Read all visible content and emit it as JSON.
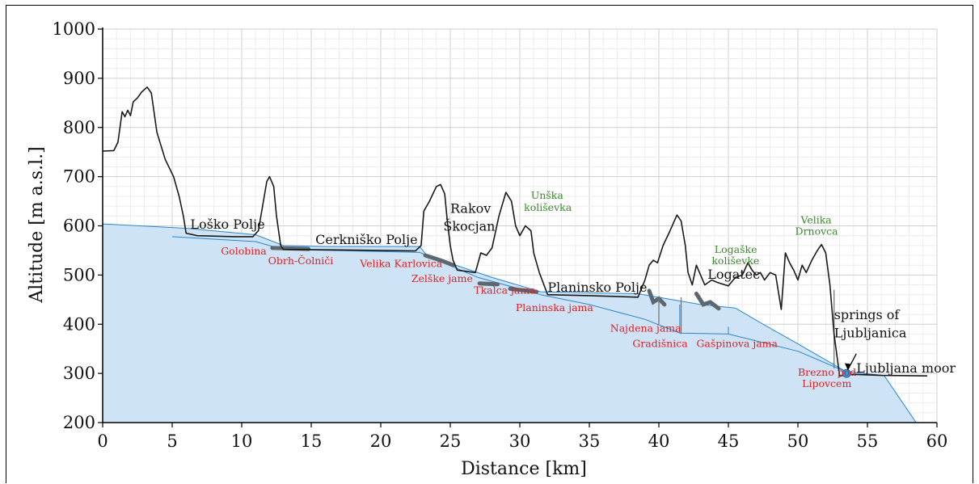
{
  "chart_data": {
    "type": "area",
    "xlabel": "Distance [km]",
    "ylabel": "Altitude [m a.s.l.]",
    "xlim": [
      0,
      60
    ],
    "ylim": [
      200,
      1000
    ],
    "x_ticks": [
      0,
      5,
      10,
      15,
      20,
      25,
      30,
      35,
      40,
      45,
      50,
      55,
      60
    ],
    "y_ticks": [
      200,
      300,
      400,
      500,
      600,
      700,
      800,
      900,
      1000
    ],
    "grid": true,
    "colors": {
      "surface": "#1a1a1a",
      "aquifer_fill": "#cfe3f6",
      "aquifer_line": "#2b86cf",
      "cave_label": "#e02020",
      "doline_label": "#3a8a2a",
      "place_label": "#111111",
      "spring_marker": "#2f9be0"
    },
    "series": [
      {
        "role": "surface",
        "points": [
          [
            0,
            752
          ],
          [
            0.8,
            753
          ],
          [
            1.1,
            770
          ],
          [
            1.4,
            832
          ],
          [
            1.6,
            822
          ],
          [
            1.8,
            835
          ],
          [
            2.0,
            824
          ],
          [
            2.2,
            852
          ],
          [
            2.5,
            860
          ],
          [
            2.8,
            872
          ],
          [
            3.2,
            882
          ],
          [
            3.5,
            870
          ],
          [
            3.9,
            790
          ],
          [
            4.5,
            735
          ],
          [
            5.1,
            700
          ],
          [
            5.5,
            660
          ],
          [
            5.8,
            620
          ],
          [
            6.0,
            585
          ],
          [
            6.8,
            580
          ],
          [
            9.5,
            578
          ],
          [
            10.8,
            578
          ],
          [
            11.2,
            590
          ],
          [
            11.5,
            640
          ],
          [
            11.8,
            690
          ],
          [
            12.0,
            700
          ],
          [
            12.3,
            680
          ],
          [
            12.5,
            620
          ],
          [
            12.8,
            560
          ],
          [
            13.0,
            552
          ],
          [
            17,
            551
          ],
          [
            22.5,
            549
          ],
          [
            22.9,
            560
          ],
          [
            23.1,
            630
          ],
          [
            23.5,
            650
          ],
          [
            24.0,
            680
          ],
          [
            24.3,
            684
          ],
          [
            24.6,
            665
          ],
          [
            24.8,
            605
          ],
          [
            25.0,
            560
          ],
          [
            25.2,
            530
          ],
          [
            25.5,
            510
          ],
          [
            26.8,
            505
          ],
          [
            27.2,
            545
          ],
          [
            27.6,
            540
          ],
          [
            28.0,
            555
          ],
          [
            28.5,
            620
          ],
          [
            29.0,
            668
          ],
          [
            29.4,
            650
          ],
          [
            29.7,
            600
          ],
          [
            30.0,
            580
          ],
          [
            30.4,
            600
          ],
          [
            30.8,
            590
          ],
          [
            31.0,
            545
          ],
          [
            31.4,
            505
          ],
          [
            32.0,
            460
          ],
          [
            35,
            458
          ],
          [
            38.5,
            455
          ],
          [
            39.0,
            490
          ],
          [
            39.3,
            520
          ],
          [
            39.6,
            530
          ],
          [
            39.9,
            525
          ],
          [
            40.3,
            560
          ],
          [
            40.8,
            590
          ],
          [
            41.3,
            622
          ],
          [
            41.6,
            610
          ],
          [
            41.9,
            560
          ],
          [
            42.1,
            505
          ],
          [
            42.4,
            480
          ],
          [
            42.7,
            520
          ],
          [
            43.0,
            500
          ],
          [
            43.3,
            480
          ],
          [
            43.8,
            490
          ],
          [
            44.2,
            485
          ],
          [
            45.0,
            478
          ],
          [
            45.5,
            495
          ],
          [
            46.0,
            500
          ],
          [
            46.4,
            525
          ],
          [
            46.7,
            510
          ],
          [
            47.0,
            500
          ],
          [
            47.3,
            505
          ],
          [
            47.6,
            490
          ],
          [
            48.0,
            505
          ],
          [
            48.4,
            500
          ],
          [
            48.8,
            430
          ],
          [
            49.1,
            545
          ],
          [
            49.4,
            525
          ],
          [
            49.7,
            510
          ],
          [
            50.0,
            490
          ],
          [
            50.3,
            520
          ],
          [
            50.6,
            505
          ],
          [
            51.0,
            530
          ],
          [
            51.4,
            550
          ],
          [
            51.7,
            562
          ],
          [
            52.0,
            545
          ],
          [
            52.3,
            480
          ],
          [
            52.6,
            380
          ],
          [
            53.0,
            295
          ],
          [
            54.0,
            298
          ],
          [
            56.0,
            296
          ],
          [
            59.3,
            295
          ]
        ]
      },
      {
        "role": "aquifer",
        "points": [
          [
            0,
            604
          ],
          [
            6,
            595
          ],
          [
            11,
            582
          ],
          [
            13,
            560
          ],
          [
            16,
            558
          ],
          [
            22.8,
            558
          ],
          [
            23.3,
            540
          ],
          [
            28,
            495
          ],
          [
            31.5,
            466
          ],
          [
            38.5,
            462
          ],
          [
            43,
            440
          ],
          [
            45.5,
            433
          ],
          [
            47.5,
            400
          ],
          [
            50,
            360
          ],
          [
            53.5,
            303
          ],
          [
            56.2,
            296
          ],
          [
            58.5,
            200
          ],
          [
            0,
            200
          ]
        ]
      }
    ],
    "annotations": {
      "places": [
        {
          "text": "Loško Polje",
          "x": 6.3,
          "y": 594
        },
        {
          "text": "Cerkniško Polje",
          "x": 15.3,
          "y": 563
        },
        {
          "text": "Rakov",
          "x": 25.0,
          "y": 626
        },
        {
          "text": "Škocjan",
          "x": 24.5,
          "y": 590
        },
        {
          "text": "Planinsko Polje",
          "x": 32.0,
          "y": 466
        },
        {
          "text": "Logatec",
          "x": 43.5,
          "y": 492
        },
        {
          "text": "springs of",
          "x": 52.6,
          "y": 410
        },
        {
          "text": "Ljubljanica",
          "x": 52.6,
          "y": 373
        },
        {
          "text": "Ljubljana moor",
          "x": 54.2,
          "y": 302
        }
      ],
      "caves": [
        {
          "text": "Golobina",
          "x": 8.5,
          "y": 542
        },
        {
          "text": "Obrh-Čolniči",
          "x": 11.9,
          "y": 522
        },
        {
          "text": "Velika Karlovica",
          "x": 18.5,
          "y": 516
        },
        {
          "text": "Zelške jame",
          "x": 22.2,
          "y": 486
        },
        {
          "text": "Tkalca jama",
          "x": 26.7,
          "y": 462
        },
        {
          "text": "Planinska jama",
          "x": 29.7,
          "y": 427
        },
        {
          "text": "Najdena jama",
          "x": 36.5,
          "y": 385
        },
        {
          "text": "Gradišnica",
          "x": 38.1,
          "y": 354
        },
        {
          "text": "Gašpinova jama",
          "x": 42.7,
          "y": 354
        },
        {
          "text": "Brezno pod",
          "x": 50.0,
          "y": 295
        },
        {
          "text": "Lipovcem",
          "x": 50.3,
          "y": 272
        }
      ],
      "dolines": [
        {
          "text": "Unška",
          "x": 30.8,
          "y": 655
        },
        {
          "text": "koliševka",
          "x": 30.3,
          "y": 630
        },
        {
          "text": "Logaške",
          "x": 44.0,
          "y": 545
        },
        {
          "text": "koliševke",
          "x": 43.8,
          "y": 522
        },
        {
          "text": "Velika",
          "x": 50.2,
          "y": 605
        },
        {
          "text": "Drnovca",
          "x": 49.8,
          "y": 582
        }
      ]
    }
  }
}
